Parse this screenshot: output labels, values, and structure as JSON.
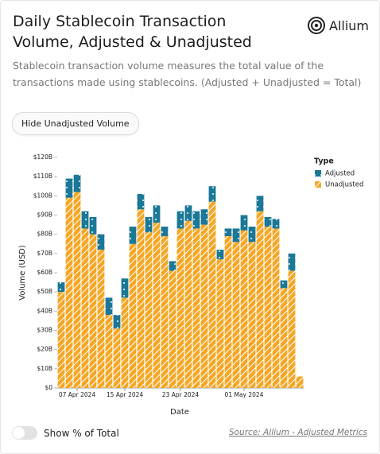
{
  "header": {
    "title": "Daily Stablecoin Transaction Volume, Adjusted & Unadjusted",
    "logo": "Allium",
    "description": "Stablecoin transaction volume measures the total value of the transactions made using stablecoins. (Adjusted + Unadjusted = Total)"
  },
  "button": "Hide Unadjusted Volume",
  "toggle_label": "Show % of Total",
  "source": "Source: Allium - Adjusted Metrics",
  "chart_data": {
    "type": "stacked-bar",
    "x_label": "Date",
    "y_label": "Volume (USD)",
    "legend_title": "Type",
    "legend_position": "right",
    "categories": [
      null,
      null,
      "07 Apr 2024",
      null,
      null,
      null,
      null,
      null,
      "15 Apr 2024",
      null,
      null,
      null,
      null,
      null,
      null,
      "23 Apr 2024",
      null,
      null,
      null,
      null,
      null,
      null,
      null,
      "01 May 2024",
      null,
      null,
      null,
      null,
      null,
      null,
      null
    ],
    "series": [
      {
        "name": "Adjusted",
        "color": "#1b7896",
        "values": [
          5,
          10,
          9,
          9,
          9,
          8,
          9,
          7,
          10,
          9,
          8,
          8,
          9,
          5,
          5,
          9,
          8,
          9,
          8,
          8,
          5,
          4,
          7,
          8,
          8,
          8,
          5,
          5,
          4,
          9,
          0
        ]
      },
      {
        "name": "Unadjusted",
        "color": "#f5a623",
        "values": [
          50,
          99,
          102,
          83,
          80,
          72,
          38,
          31,
          47,
          75,
          93,
          81,
          86,
          79,
          61,
          83,
          87,
          83,
          85,
          97,
          67,
          79,
          76,
          82,
          76,
          92,
          84,
          83,
          52,
          61,
          6
        ]
      }
    ],
    "ylim": [
      0,
      120
    ],
    "yticks": [
      {
        "value": 0,
        "label": "$0"
      },
      {
        "value": 10,
        "label": "$10B"
      },
      {
        "value": 20,
        "label": "$20B"
      },
      {
        "value": 30,
        "label": "$30B"
      },
      {
        "value": 40,
        "label": "$40B"
      },
      {
        "value": 50,
        "label": "$50B"
      },
      {
        "value": 60,
        "label": "$60B"
      },
      {
        "value": 70,
        "label": "$70B"
      },
      {
        "value": 80,
        "label": "$80B"
      },
      {
        "value": 90,
        "label": "$90B"
      },
      {
        "value": 100,
        "label": "$100B"
      },
      {
        "value": 110,
        "label": "$110B"
      },
      {
        "value": 120,
        "label": "$120B"
      }
    ],
    "grid": false
  }
}
